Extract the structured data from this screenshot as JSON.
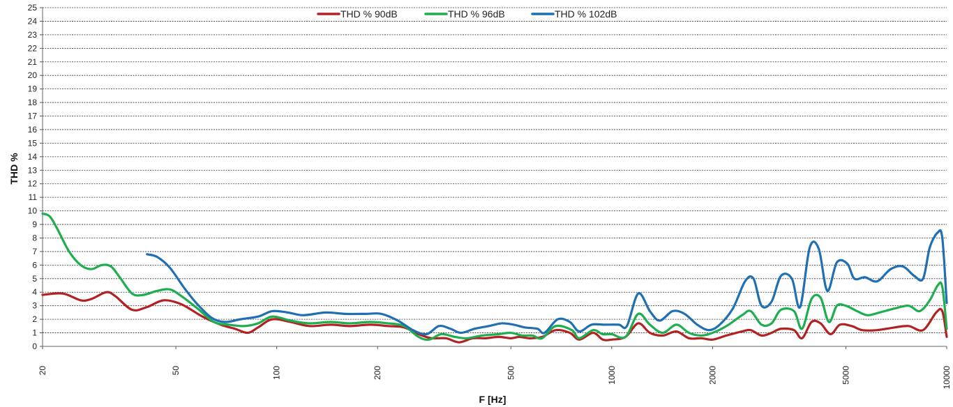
{
  "chart_data": {
    "type": "line",
    "xlabel": "F [Hz]",
    "ylabel": "THD %",
    "xscale": "log",
    "xlim": [
      20,
      10000
    ],
    "ylim": [
      0,
      25
    ],
    "grid": "horizontal dashed",
    "legend_position": "top-center",
    "x_ticks": [
      20,
      50,
      100,
      200,
      500,
      1000,
      2000,
      5000,
      10000
    ],
    "y_ticks": [
      0,
      1,
      2,
      3,
      4,
      5,
      6,
      7,
      8,
      9,
      10,
      11,
      12,
      13,
      14,
      15,
      16,
      17,
      18,
      19,
      20,
      21,
      22,
      23,
      24,
      25
    ],
    "series": [
      {
        "name": "THD % 90dB",
        "color": "#b22222",
        "points": [
          [
            20,
            3.8
          ],
          [
            23,
            3.9
          ],
          [
            26,
            3.4
          ],
          [
            28,
            3.5
          ],
          [
            31,
            4.0
          ],
          [
            33,
            3.7
          ],
          [
            37,
            2.7
          ],
          [
            41,
            2.9
          ],
          [
            46,
            3.4
          ],
          [
            52,
            3.1
          ],
          [
            60,
            2.2
          ],
          [
            68,
            1.6
          ],
          [
            75,
            1.3
          ],
          [
            82,
            1.0
          ],
          [
            88,
            1.4
          ],
          [
            97,
            2.0
          ],
          [
            110,
            1.8
          ],
          [
            125,
            1.5
          ],
          [
            145,
            1.6
          ],
          [
            165,
            1.5
          ],
          [
            190,
            1.6
          ],
          [
            215,
            1.5
          ],
          [
            240,
            1.4
          ],
          [
            265,
            0.9
          ],
          [
            290,
            0.6
          ],
          [
            320,
            0.6
          ],
          [
            350,
            0.3
          ],
          [
            385,
            0.6
          ],
          [
            420,
            0.6
          ],
          [
            460,
            0.7
          ],
          [
            500,
            0.6
          ],
          [
            530,
            0.7
          ],
          [
            570,
            0.6
          ],
          [
            620,
            0.7
          ],
          [
            680,
            1.2
          ],
          [
            750,
            1.0
          ],
          [
            800,
            0.5
          ],
          [
            880,
            1.0
          ],
          [
            940,
            0.5
          ],
          [
            1000,
            0.5
          ],
          [
            1100,
            0.7
          ],
          [
            1200,
            1.7
          ],
          [
            1300,
            1.0
          ],
          [
            1420,
            0.8
          ],
          [
            1560,
            1.1
          ],
          [
            1700,
            0.6
          ],
          [
            1850,
            0.6
          ],
          [
            2000,
            0.5
          ],
          [
            2200,
            0.8
          ],
          [
            2450,
            1.1
          ],
          [
            2600,
            1.2
          ],
          [
            2800,
            0.8
          ],
          [
            3000,
            1.0
          ],
          [
            3200,
            1.3
          ],
          [
            3500,
            1.2
          ],
          [
            3700,
            0.6
          ],
          [
            3950,
            1.8
          ],
          [
            4200,
            1.7
          ],
          [
            4500,
            0.9
          ],
          [
            4800,
            1.6
          ],
          [
            5200,
            1.5
          ],
          [
            5600,
            1.2
          ],
          [
            6200,
            1.2
          ],
          [
            7000,
            1.4
          ],
          [
            7700,
            1.5
          ],
          [
            8500,
            1.2
          ],
          [
            9300,
            2.5
          ],
          [
            9700,
            2.6
          ],
          [
            10000,
            0.7
          ]
        ]
      },
      {
        "name": "THD % 96dB",
        "color": "#1fae4f",
        "points": [
          [
            20,
            9.8
          ],
          [
            21,
            9.6
          ],
          [
            22,
            8.8
          ],
          [
            24,
            7.0
          ],
          [
            26,
            6.0
          ],
          [
            28,
            5.7
          ],
          [
            30,
            6.0
          ],
          [
            32,
            5.9
          ],
          [
            34,
            5.1
          ],
          [
            37,
            3.9
          ],
          [
            40,
            3.8
          ],
          [
            44,
            4.1
          ],
          [
            48,
            4.2
          ],
          [
            52,
            3.7
          ],
          [
            58,
            2.8
          ],
          [
            65,
            1.8
          ],
          [
            72,
            1.6
          ],
          [
            80,
            1.5
          ],
          [
            88,
            1.7
          ],
          [
            97,
            2.2
          ],
          [
            110,
            1.9
          ],
          [
            125,
            1.7
          ],
          [
            145,
            1.8
          ],
          [
            165,
            1.7
          ],
          [
            190,
            1.8
          ],
          [
            215,
            1.7
          ],
          [
            240,
            1.5
          ],
          [
            265,
            0.7
          ],
          [
            285,
            0.5
          ],
          [
            310,
            0.9
          ],
          [
            340,
            0.7
          ],
          [
            370,
            0.6
          ],
          [
            410,
            0.8
          ],
          [
            460,
            0.9
          ],
          [
            500,
            1.0
          ],
          [
            540,
            0.8
          ],
          [
            580,
            0.8
          ],
          [
            620,
            0.6
          ],
          [
            680,
            1.5
          ],
          [
            760,
            1.2
          ],
          [
            800,
            0.6
          ],
          [
            880,
            1.2
          ],
          [
            940,
            0.9
          ],
          [
            1000,
            0.9
          ],
          [
            1100,
            0.7
          ],
          [
            1200,
            2.4
          ],
          [
            1300,
            1.6
          ],
          [
            1420,
            1.0
          ],
          [
            1560,
            1.6
          ],
          [
            1700,
            1.0
          ],
          [
            1850,
            0.8
          ],
          [
            2000,
            1.0
          ],
          [
            2200,
            1.5
          ],
          [
            2450,
            2.3
          ],
          [
            2600,
            2.6
          ],
          [
            2800,
            1.6
          ],
          [
            3000,
            1.7
          ],
          [
            3200,
            2.7
          ],
          [
            3500,
            2.6
          ],
          [
            3700,
            1.3
          ],
          [
            3950,
            3.5
          ],
          [
            4200,
            3.6
          ],
          [
            4450,
            1.8
          ],
          [
            4700,
            3.0
          ],
          [
            5000,
            3.0
          ],
          [
            5400,
            2.6
          ],
          [
            5800,
            2.3
          ],
          [
            6300,
            2.5
          ],
          [
            7000,
            2.8
          ],
          [
            7700,
            3.0
          ],
          [
            8300,
            2.6
          ],
          [
            8900,
            3.4
          ],
          [
            9400,
            4.5
          ],
          [
            9700,
            4.4
          ],
          [
            10000,
            1.3
          ]
        ]
      },
      {
        "name": "THD % 102dB",
        "color": "#1f6fb2",
        "points": [
          [
            41,
            6.8
          ],
          [
            44,
            6.6
          ],
          [
            48,
            5.8
          ],
          [
            53,
            4.3
          ],
          [
            58,
            3.1
          ],
          [
            64,
            2.1
          ],
          [
            70,
            1.8
          ],
          [
            78,
            2.0
          ],
          [
            88,
            2.2
          ],
          [
            97,
            2.6
          ],
          [
            108,
            2.5
          ],
          [
            120,
            2.3
          ],
          [
            140,
            2.5
          ],
          [
            160,
            2.4
          ],
          [
            185,
            2.4
          ],
          [
            205,
            2.4
          ],
          [
            230,
            1.9
          ],
          [
            255,
            1.2
          ],
          [
            280,
            0.9
          ],
          [
            305,
            1.5
          ],
          [
            330,
            1.3
          ],
          [
            355,
            1.0
          ],
          [
            390,
            1.3
          ],
          [
            430,
            1.5
          ],
          [
            470,
            1.7
          ],
          [
            510,
            1.6
          ],
          [
            550,
            1.4
          ],
          [
            600,
            1.3
          ],
          [
            630,
            1.0
          ],
          [
            690,
            2.0
          ],
          [
            750,
            1.8
          ],
          [
            800,
            1.1
          ],
          [
            870,
            1.6
          ],
          [
            950,
            1.6
          ],
          [
            1050,
            1.6
          ],
          [
            1110,
            1.5
          ],
          [
            1200,
            3.9
          ],
          [
            1300,
            2.6
          ],
          [
            1390,
            1.9
          ],
          [
            1520,
            2.6
          ],
          [
            1650,
            2.4
          ],
          [
            1800,
            1.6
          ],
          [
            1950,
            1.2
          ],
          [
            2100,
            1.6
          ],
          [
            2300,
            2.8
          ],
          [
            2500,
            4.8
          ],
          [
            2650,
            5.0
          ],
          [
            2800,
            3.0
          ],
          [
            3000,
            3.3
          ],
          [
            3200,
            5.2
          ],
          [
            3450,
            5.0
          ],
          [
            3650,
            2.9
          ],
          [
            3900,
            7.3
          ],
          [
            4150,
            7.2
          ],
          [
            4400,
            4.1
          ],
          [
            4700,
            6.2
          ],
          [
            5050,
            6.1
          ],
          [
            5300,
            5.0
          ],
          [
            5700,
            5.1
          ],
          [
            6200,
            4.8
          ],
          [
            6800,
            5.7
          ],
          [
            7400,
            5.9
          ],
          [
            8000,
            5.2
          ],
          [
            8500,
            5.0
          ],
          [
            8900,
            7.3
          ],
          [
            9400,
            8.4
          ],
          [
            9700,
            8.0
          ],
          [
            10000,
            3.2
          ]
        ]
      }
    ]
  }
}
